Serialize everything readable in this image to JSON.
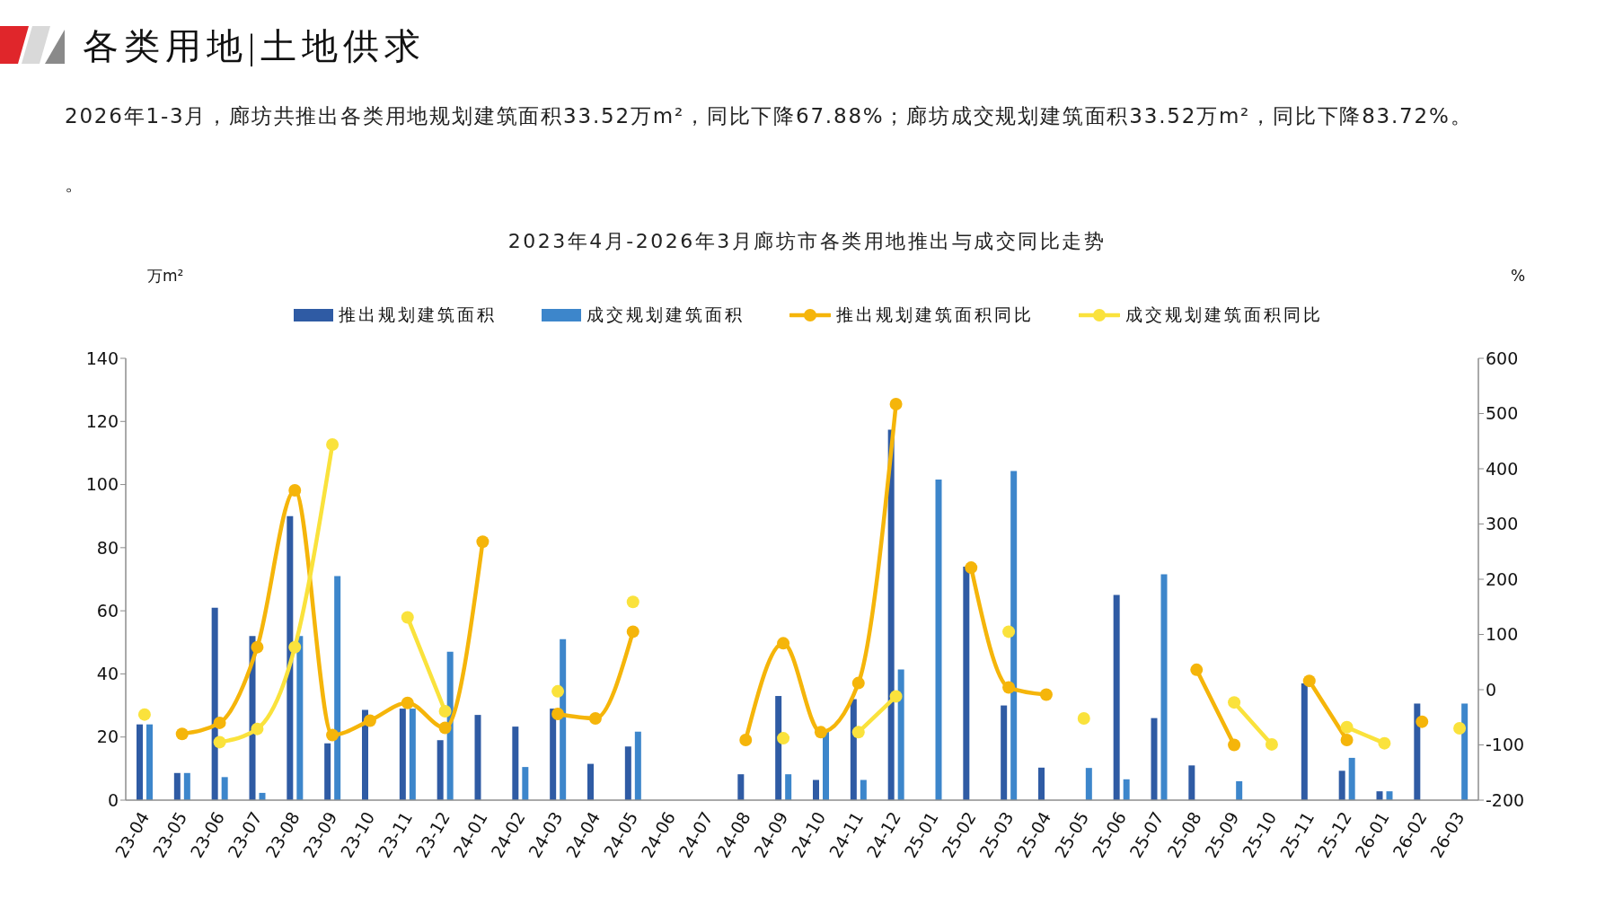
{
  "chart_data": {
    "type": "bar",
    "title": "各类用地|土地供求",
    "subtitle": "2023年4月-2026年3月廊坊市各类用地推出与成交同比走势",
    "annotations": [
      "2026年1-3月，廊坊共推出各类用地规划建筑面积33.52万m²，同比下降67.88%；廊坊成交规划建筑面积33.52万m²，同比下降83.72%。",
      "。"
    ],
    "ylabel": "万m²",
    "y2label": "%",
    "categories": [
      "23-04",
      "23-05",
      "23-06",
      "23-07",
      "23-08",
      "23-09",
      "23-10",
      "23-11",
      "23-12",
      "24-01",
      "24-02",
      "24-03",
      "24-04",
      "24-05",
      "24-06",
      "24-07",
      "24-08",
      "24-09",
      "24-10",
      "24-11",
      "24-12",
      "25-01",
      "25-02",
      "25-03",
      "25-04",
      "25-05",
      "25-06",
      "25-07",
      "25-08",
      "25-09",
      "25-10",
      "25-11",
      "25-12",
      "26-01",
      "26-02",
      "26-03"
    ],
    "series": [
      {
        "name": "推出规划建筑面积",
        "color": "#2f5ba4",
        "values": [
          24,
          8.6,
          61,
          52,
          90,
          18,
          28.6,
          29,
          19,
          27,
          23.3,
          29,
          11.5,
          17,
          null,
          null,
          8.2,
          33,
          6.4,
          32,
          117.4,
          null,
          74,
          30,
          10.3,
          null,
          65,
          26,
          11,
          null,
          null,
          37,
          9.3,
          2.8,
          30.6,
          null
        ]
      },
      {
        "name": "成交规划建筑面积",
        "color": "#3d86cb",
        "values": [
          24,
          8.6,
          7.3,
          2.3,
          52,
          71,
          null,
          29,
          47,
          null,
          10.5,
          51,
          null,
          21.7,
          null,
          null,
          null,
          8.2,
          22,
          6.4,
          41.4,
          101.6,
          null,
          104.3,
          null,
          10.2,
          6.6,
          71.6,
          null,
          6,
          null,
          null,
          13.4,
          2.8,
          null,
          30.6
        ]
      },
      {
        "name": "推出规划建筑面积同比",
        "type": "line",
        "axis": "y2",
        "color": "#f5b50a",
        "values": [
          null,
          -80,
          -60,
          77,
          361,
          -82,
          -56,
          -24,
          -69,
          268,
          null,
          -44,
          -52,
          105,
          null,
          null,
          -91,
          84,
          -77,
          12,
          517,
          null,
          221,
          4,
          -9,
          null,
          null,
          null,
          36,
          -100,
          null,
          16,
          -91,
          null,
          -58,
          null
        ]
      },
      {
        "name": "成交规划建筑面积同比",
        "type": "line",
        "axis": "y2",
        "color": "#fae23c",
        "values": [
          -45,
          null,
          -95,
          -71,
          77,
          444,
          null,
          131,
          -39,
          null,
          null,
          -3,
          null,
          159,
          null,
          null,
          null,
          -88,
          null,
          -77,
          -12,
          null,
          null,
          105,
          null,
          -52,
          null,
          null,
          null,
          -23,
          -99,
          null,
          -68,
          -97,
          null,
          -70
        ]
      }
    ],
    "ylim": [
      0,
      140
    ],
    "yticks": [
      0,
      20,
      40,
      60,
      80,
      100,
      120,
      140
    ],
    "y2lim": [
      -200,
      600
    ],
    "y2ticks": [
      -200,
      -100,
      0,
      100,
      200,
      300,
      400,
      500,
      600
    ],
    "legend": "top",
    "marker": "circle"
  }
}
